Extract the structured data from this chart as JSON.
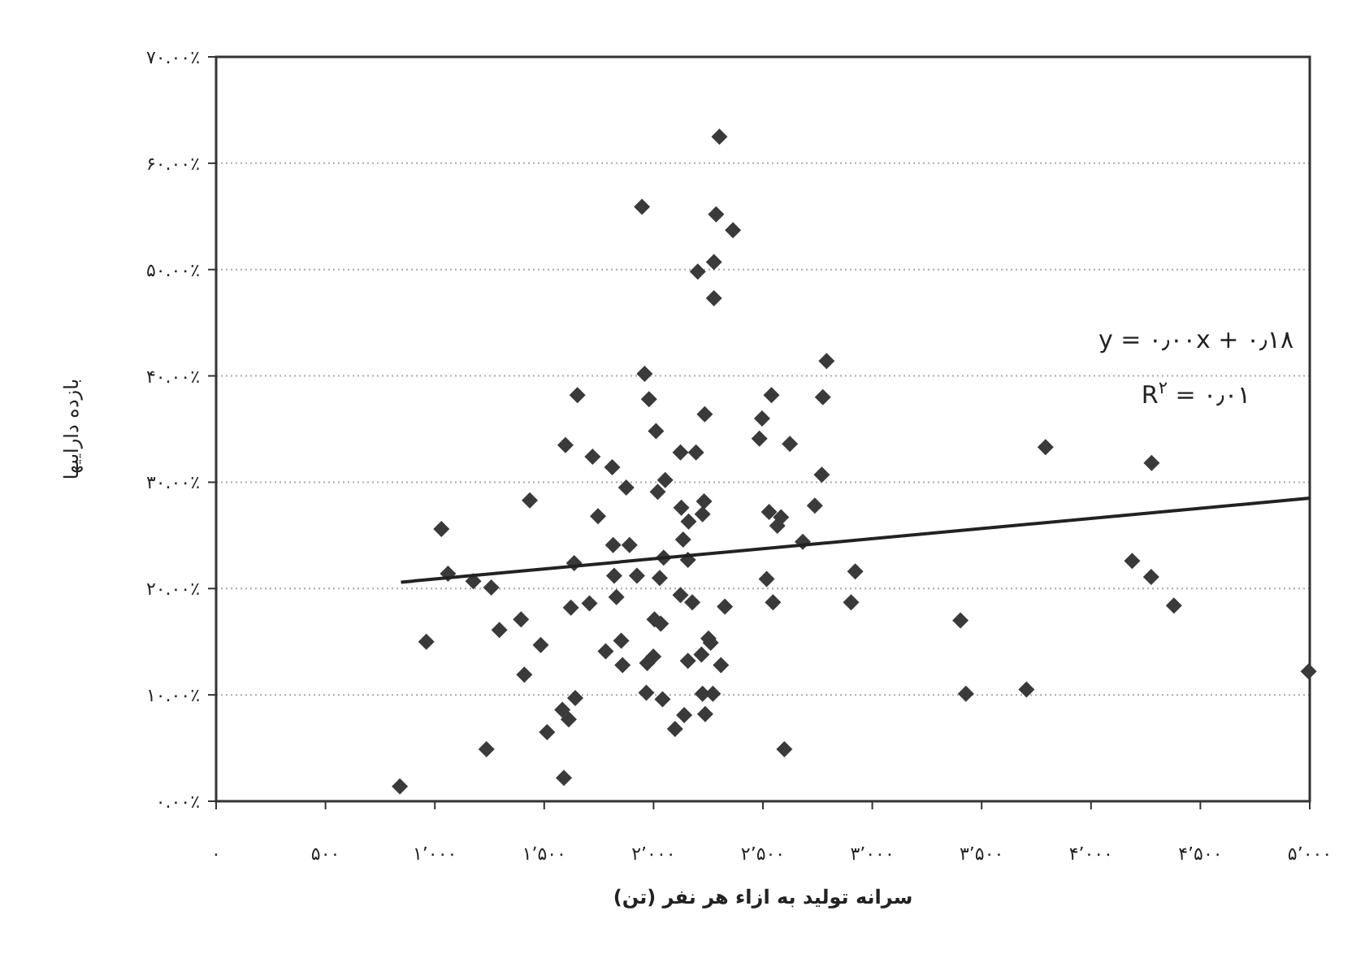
{
  "chart_data": {
    "type": "scatter",
    "xlabel": "سرانه تولید به ازاء هر نفر (تن)",
    "ylabel": "بازده دارایيها",
    "xlim": [
      0,
      5000
    ],
    "xticks": [
      {
        "value": 0,
        "label": "۰"
      },
      {
        "value": 500,
        "label": "۵۰۰"
      },
      {
        "value": 1000,
        "label": "۱٬۰۰۰"
      },
      {
        "value": 1500,
        "label": "۱٬۵۰۰"
      },
      {
        "value": 2000,
        "label": "۲٬۰۰۰"
      },
      {
        "value": 2500,
        "label": "۲٬۵۰۰"
      },
      {
        "value": 3000,
        "label": "۳٬۰۰۰"
      },
      {
        "value": 3500,
        "label": "۳٬۵۰۰"
      },
      {
        "value": 4000,
        "label": "۴٬۰۰۰"
      },
      {
        "value": 4500,
        "label": "۴٬۵۰۰"
      },
      {
        "value": 5000,
        "label": "۵٬۰۰۰"
      }
    ],
    "ylim": [
      0,
      70
    ],
    "yticks": [
      {
        "value": 0,
        "label": "۰.۰۰٪"
      },
      {
        "value": 10,
        "label": "۱۰.۰۰٪"
      },
      {
        "value": 20,
        "label": "۲۰.۰۰٪"
      },
      {
        "value": 30,
        "label": "۳۰.۰۰٪"
      },
      {
        "value": 40,
        "label": "۴۰.۰۰٪"
      },
      {
        "value": 50,
        "label": "۵۰.۰۰٪"
      },
      {
        "value": 60,
        "label": "۶۰.۰۰٪"
      },
      {
        "value": 70,
        "label": "۷۰.۰۰٪"
      }
    ],
    "grid": "y",
    "annotations": [
      "y = ۰٫۰۰x + ۰٫۱۸",
      "R$^{۲}$ = ۰٫۰۱"
    ],
    "series": [
      {
        "type": "scatter",
        "color": "#3a3a3a",
        "marker": "diamond",
        "x": [
          840,
          961,
          1030,
          1060,
          1176,
          1236,
          1258,
          1295,
          1394,
          1409,
          1434,
          1484,
          1513,
          1590,
          1583,
          1612,
          1642,
          1597,
          1652,
          1622,
          1637,
          1707,
          1721,
          1746,
          1781,
          1811,
          1815,
          1820,
          1830,
          1852,
          1858,
          1875,
          1890,
          1924,
          1947,
          1959,
          1979,
          1967,
          1971,
          1999,
          2011,
          2019,
          2053,
          2028,
          2041,
          2004,
          2033,
          2046,
          2098,
          2123,
          2127,
          2135,
          2123,
          2160,
          2157,
          2177,
          2140,
          2157,
          2194,
          2202,
          2224,
          2231,
          2234,
          2219,
          2224,
          2236,
          2251,
          2261,
          2271,
          2276,
          2276,
          2286,
          2301,
          2308,
          2326,
          2363,
          2496,
          2484,
          2517,
          2528,
          2539,
          2546,
          2566,
          2791,
          2774,
          2623,
          2769,
          2583,
          2737,
          2682,
          2922,
          2903,
          2598,
          3403,
          3428,
          3705,
          3792,
          4188,
          4275,
          4277,
          4379,
          4995
        ],
        "values": [
          1.4,
          15.0,
          25.6,
          21.4,
          20.7,
          4.9,
          20.1,
          16.1,
          17.1,
          11.9,
          28.3,
          14.7,
          6.5,
          2.2,
          8.6,
          7.7,
          9.7,
          33.5,
          38.2,
          18.2,
          22.4,
          18.6,
          32.4,
          26.8,
          14.1,
          31.4,
          24.1,
          21.2,
          19.2,
          15.1,
          12.8,
          29.5,
          24.1,
          21.2,
          55.9,
          40.2,
          37.8,
          10.2,
          13.0,
          13.6,
          34.8,
          29.1,
          30.2,
          21.0,
          9.6,
          17.1,
          16.7,
          22.9,
          6.8,
          32.8,
          27.6,
          24.6,
          19.4,
          26.3,
          22.7,
          18.7,
          8.1,
          13.2,
          32.8,
          49.8,
          27.0,
          28.2,
          36.4,
          13.8,
          10.1,
          8.2,
          15.3,
          14.9,
          10.1,
          50.7,
          47.3,
          55.2,
          62.5,
          12.8,
          18.3,
          53.7,
          36.0,
          34.1,
          20.9,
          27.2,
          38.2,
          18.7,
          25.9,
          41.4,
          38.0,
          33.6,
          30.7,
          26.7,
          27.8,
          24.4,
          21.6,
          18.7,
          4.9,
          17.0,
          10.1,
          10.5,
          33.3,
          22.6,
          21.1,
          31.8,
          18.4,
          12.2
        ]
      },
      {
        "type": "line",
        "color": "#222222",
        "x": [
          845,
          5000
        ],
        "values": [
          20.6,
          28.5
        ]
      }
    ]
  }
}
